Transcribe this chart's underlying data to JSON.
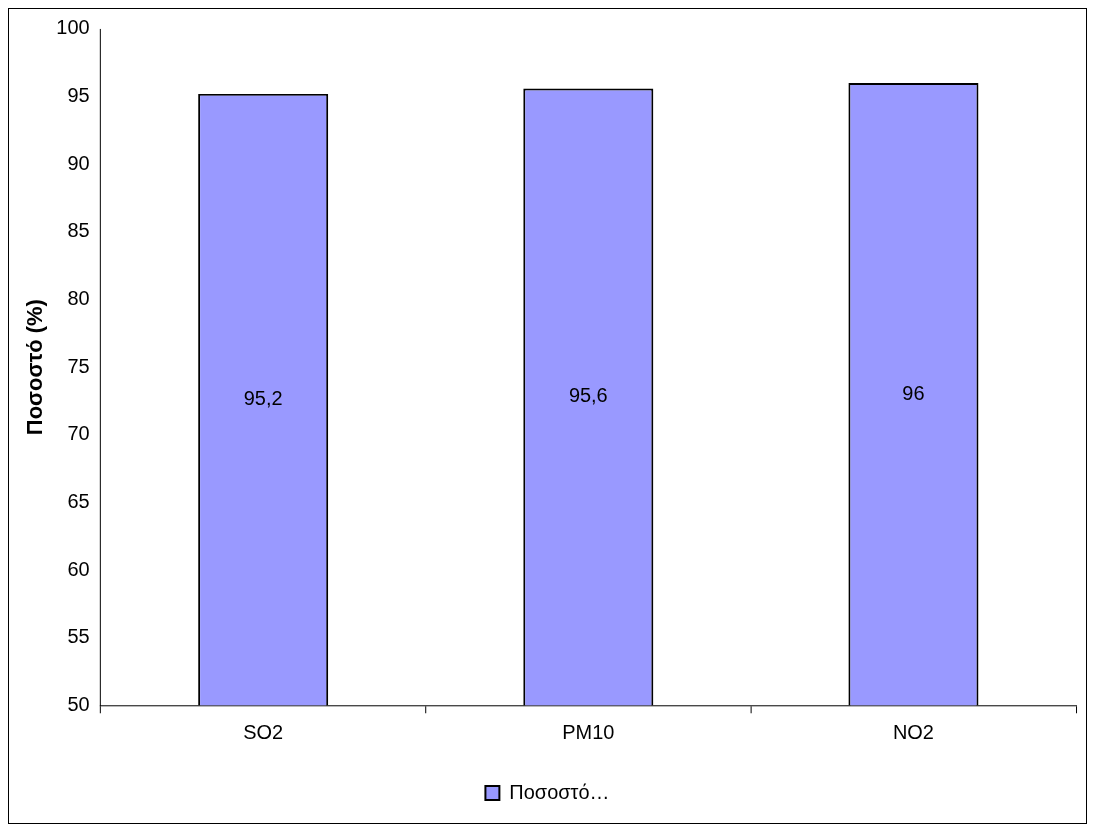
{
  "chart_data": {
    "type": "bar",
    "ylabel": "Ποσοστό (%)",
    "categories": [
      "SO2",
      "PM10",
      "NO2"
    ],
    "series": [
      {
        "name": "Ποσοστό…",
        "color": "#9999ff",
        "values": [
          95.2,
          95.6,
          96
        ],
        "value_labels": [
          "95,2",
          "95,6",
          "96"
        ]
      }
    ],
    "ylim": [
      50,
      100
    ],
    "yticks": [
      50,
      55,
      60,
      65,
      70,
      75,
      80,
      85,
      90,
      95,
      100
    ],
    "grid": false,
    "legend": "bottom"
  }
}
